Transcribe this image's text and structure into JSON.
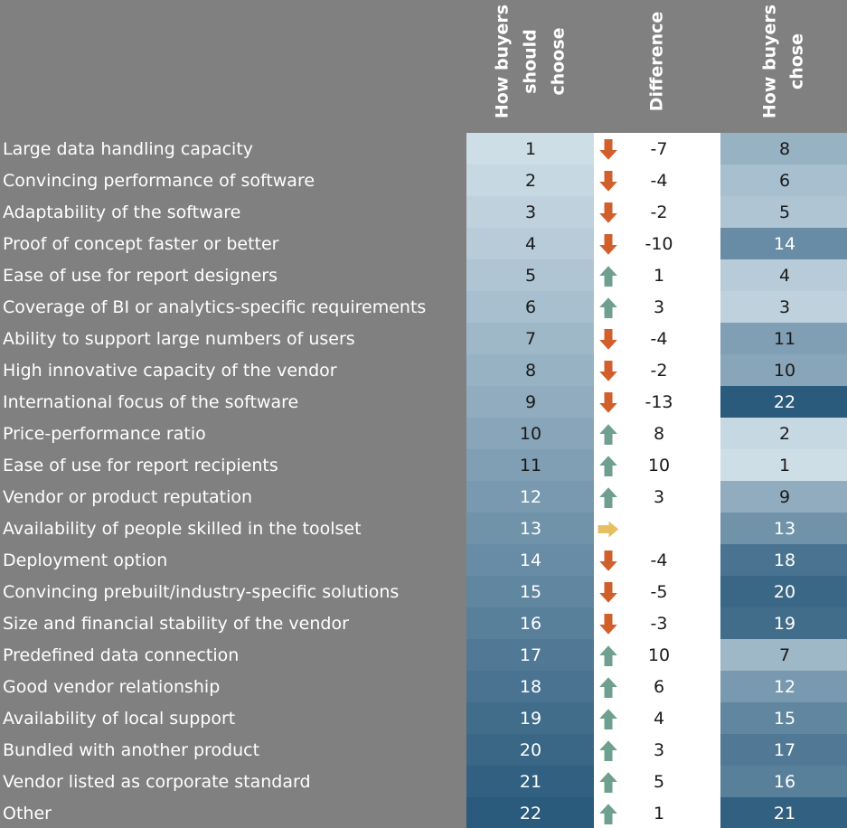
{
  "header": {
    "columns": [
      [
        "How buyers",
        "should",
        "choose"
      ],
      [
        "Difference"
      ],
      [
        "How buyers",
        "chose"
      ]
    ]
  },
  "table": {
    "rows": [
      [
        "Large data handling capacity",
        1,
        -7,
        8
      ],
      [
        "Convincing performance of software",
        2,
        -4,
        6
      ],
      [
        "Adaptability of the software",
        3,
        -2,
        5
      ],
      [
        "Proof of concept faster or better",
        4,
        -10,
        14
      ],
      [
        "Ease of use for report designers",
        5,
        1,
        4
      ],
      [
        "Coverage of BI or analytics-specific requirements",
        6,
        3,
        3
      ],
      [
        "Ability to support large numbers of users",
        7,
        -4,
        11
      ],
      [
        "High innovative capacity of the vendor",
        8,
        -2,
        10
      ],
      [
        "International focus of the software",
        9,
        -13,
        22
      ],
      [
        "Price-performance ratio",
        10,
        8,
        2
      ],
      [
        "Ease of use for report recipients",
        11,
        10,
        1
      ],
      [
        "Vendor or product reputation",
        12,
        3,
        9
      ],
      [
        "Availability of people skilled in the toolset",
        13,
        null,
        13
      ],
      [
        "Deployment option",
        14,
        -4,
        18
      ],
      [
        "Convincing prebuilt/industry-specific solutions",
        15,
        -5,
        20
      ],
      [
        "Size and financial stability of the vendor",
        16,
        -3,
        19
      ],
      [
        "Predefined data connection",
        17,
        10,
        7
      ],
      [
        "Good vendor relationship",
        18,
        6,
        12
      ],
      [
        "Availability of local support",
        19,
        4,
        15
      ],
      [
        "Bundled with another product",
        20,
        3,
        17
      ],
      [
        "Vendor listed as corporate standard",
        21,
        5,
        16
      ],
      [
        "Other",
        22,
        1,
        21
      ]
    ]
  }
}
